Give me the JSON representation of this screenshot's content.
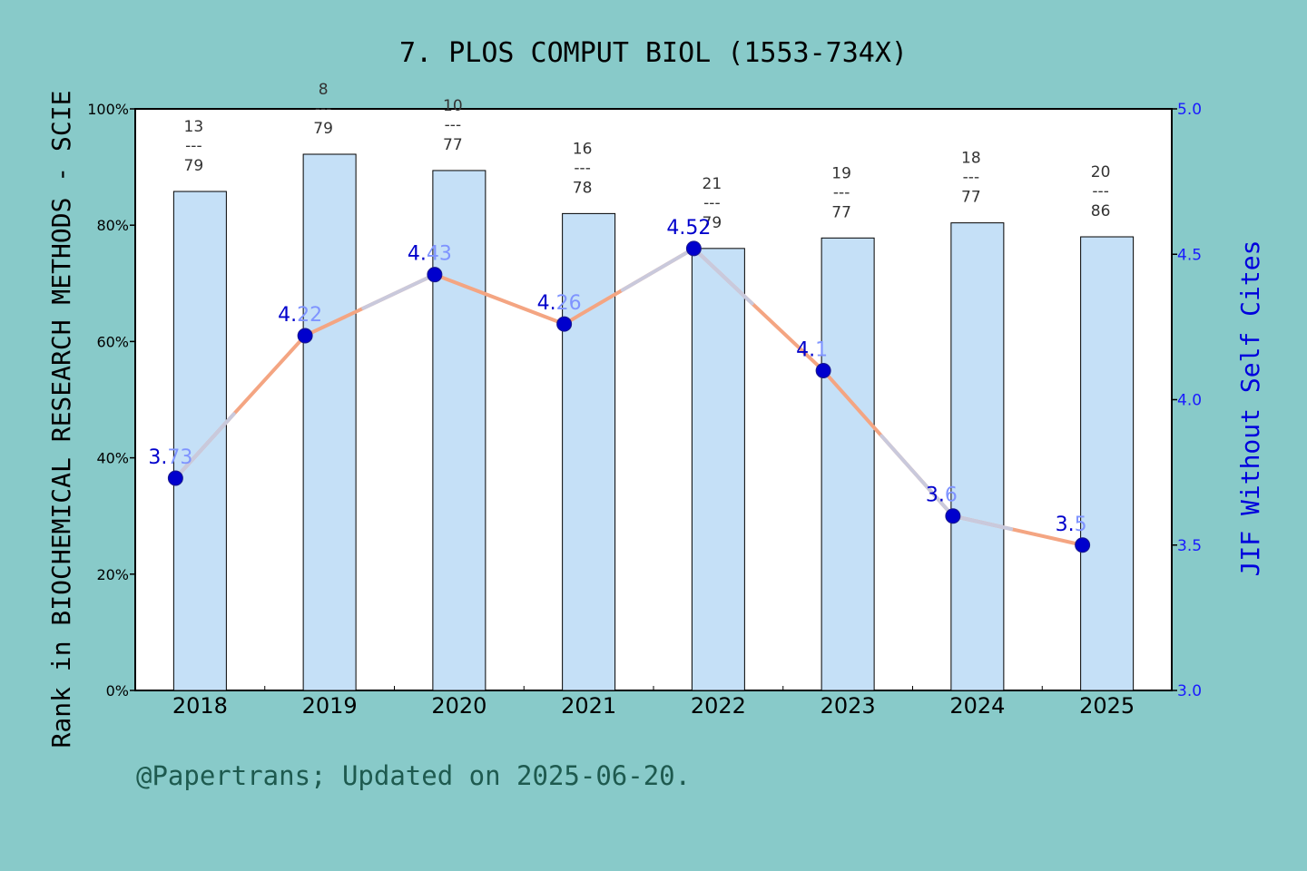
{
  "title": "7. PLOS COMPUT BIOL (1553-734X)",
  "footer": "@Papertrans; Updated on 2025-06-20.",
  "chart_data": {
    "type": "bar+line",
    "categories": [
      "2018",
      "2019",
      "2020",
      "2021",
      "2022",
      "2023",
      "2024",
      "2025"
    ],
    "left_axis": {
      "label": "Rank in BIOCHEMICAL RESEARCH METHODS - SCIE",
      "ticks": [
        "0%",
        "20%",
        "40%",
        "60%",
        "80%",
        "100%"
      ],
      "range": [
        0,
        100
      ]
    },
    "right_axis": {
      "label": "JIF Without Self Cites",
      "ticks": [
        "3.0",
        "3.5",
        "4.0",
        "4.5",
        "5.0"
      ],
      "range": [
        3.0,
        5.0
      ]
    },
    "bars": {
      "values_percent": [
        85.8,
        92.2,
        89.4,
        82.0,
        76.0,
        77.8,
        80.4,
        78.0
      ],
      "rank": [
        "13",
        "8",
        "10",
        "16",
        "21",
        "19",
        "18",
        "20"
      ],
      "total": [
        "79",
        "79",
        "77",
        "78",
        "79",
        "77",
        "77",
        "86"
      ],
      "separator": "---",
      "color": "#c5e0f7"
    },
    "line": {
      "values": [
        3.73,
        4.22,
        4.43,
        4.26,
        4.52,
        4.1,
        3.6,
        3.5
      ],
      "labels_a": [
        "3.",
        "4.",
        "4.",
        "4.",
        "4.52",
        "4.",
        "3.",
        "3."
      ],
      "labels_b": [
        "73",
        "22",
        "43",
        "26",
        "",
        "1",
        "6",
        "5"
      ],
      "line_color": "#f4a582",
      "overlay_color": "#c9c9dc",
      "marker_color": "#0000cd"
    }
  }
}
